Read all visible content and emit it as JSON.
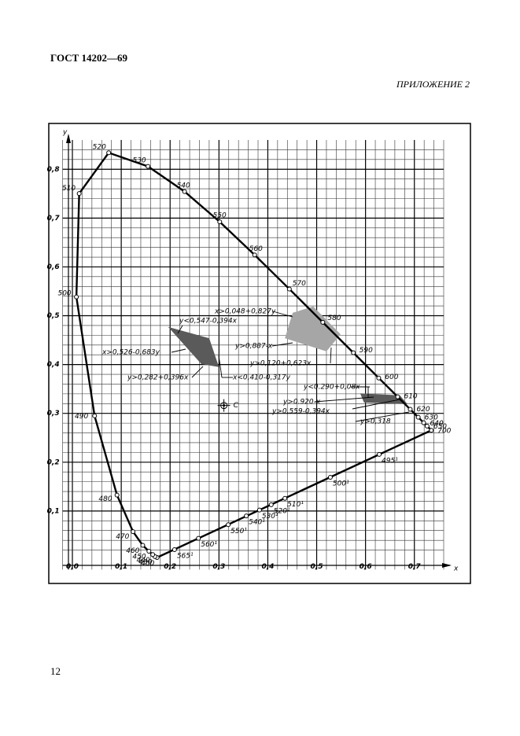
{
  "header": {
    "title": "ГОСТ 14202—69",
    "appendix": "ПРИЛОЖЕНИЕ 2"
  },
  "page_number": "12",
  "chart_data": {
    "type": "line",
    "xlabel": "x",
    "ylabel": "y",
    "xlim": [
      -0.02,
      0.76
    ],
    "ylim": [
      -0.02,
      0.86
    ],
    "xticks": [
      {
        "value": 0,
        "label": "0,0"
      },
      {
        "value": 0.1,
        "label": "0,1"
      },
      {
        "value": 0.2,
        "label": "0,2"
      },
      {
        "value": 0.3,
        "label": "0,3"
      },
      {
        "value": 0.4,
        "label": "0,4"
      },
      {
        "value": 0.5,
        "label": "0,5"
      },
      {
        "value": 0.6,
        "label": "0,6"
      },
      {
        "value": 0.7,
        "label": "0,7"
      }
    ],
    "yticks": [
      {
        "value": 0.1,
        "label": "0,1"
      },
      {
        "value": 0.2,
        "label": "0,2"
      },
      {
        "value": 0.3,
        "label": "0,3"
      },
      {
        "value": 0.4,
        "label": "0,4"
      },
      {
        "value": 0.5,
        "label": "0,5"
      },
      {
        "value": 0.6,
        "label": "0,6"
      },
      {
        "value": 0.7,
        "label": "0,7"
      },
      {
        "value": 0.8,
        "label": "0,8"
      }
    ],
    "grid": true,
    "color": "#000000",
    "locus": {
      "point_labels": [
        "400",
        "430",
        "440",
        "450",
        "460",
        "470",
        "480",
        "490",
        "500",
        "510",
        "520",
        "530",
        "540",
        "550",
        "560",
        "570",
        "580",
        "590",
        "600",
        "610",
        "620",
        "630",
        "640",
        "650",
        "700"
      ],
      "x": [
        0.1733,
        0.1689,
        0.1644,
        0.1566,
        0.144,
        0.1241,
        0.0913,
        0.0454,
        0.0082,
        0.0139,
        0.0743,
        0.1547,
        0.2296,
        0.3016,
        0.3731,
        0.4441,
        0.5125,
        0.5752,
        0.627,
        0.6658,
        0.6915,
        0.7079,
        0.719,
        0.726,
        0.7347
      ],
      "values": [
        0.0048,
        0.0069,
        0.0109,
        0.0177,
        0.0297,
        0.0578,
        0.1327,
        0.295,
        0.5384,
        0.7502,
        0.8338,
        0.8059,
        0.7543,
        0.6923,
        0.6245,
        0.5547,
        0.4866,
        0.4242,
        0.3725,
        0.334,
        0.3083,
        0.292,
        0.2809,
        0.274,
        0.2653
      ]
    },
    "purple_points": {
      "point_labels": [
        "565¹",
        "560¹",
        "550¹",
        "540¹",
        "530¹",
        "520¹",
        "510¹",
        "500¹",
        "495¹"
      ],
      "x": [
        0.209,
        0.258,
        0.319,
        0.356,
        0.383,
        0.407,
        0.435,
        0.528,
        0.628
      ],
      "values": [
        0.021,
        0.044,
        0.072,
        0.09,
        0.102,
        0.113,
        0.126,
        0.169,
        0.216
      ]
    },
    "illuminant": {
      "label": "C",
      "x": 0.3101,
      "y": 0.3162
    },
    "regions": [
      {
        "color": "#5a5a5a",
        "points": [
          [
            0.196,
            0.477
          ],
          [
            0.28,
            0.454
          ],
          [
            0.3,
            0.395
          ],
          [
            0.264,
            0.401
          ]
        ]
      },
      {
        "color": "#a6a6a6",
        "points": [
          [
            0.451,
            0.506
          ],
          [
            0.493,
            0.519
          ],
          [
            0.549,
            0.462
          ],
          [
            0.52,
            0.427
          ],
          [
            0.435,
            0.454
          ]
        ]
      },
      {
        "color": "#5a5a5a",
        "points": [
          [
            0.589,
            0.341
          ],
          [
            0.67,
            0.337
          ],
          [
            0.686,
            0.319
          ],
          [
            0.597,
            0.322
          ]
        ]
      }
    ],
    "annotations": [
      "x>0,048+0,827y",
      "y<0,547-0,394x",
      "x>0,526-0,683y",
      "y>0,282+0,396x",
      "x<0,410-0,317y",
      "y>0,887-x",
      "y>0,120+0,623x",
      "y<0.290+0,08x",
      "y>0.920-x",
      "y>0,559-0,394x",
      "y>0,318"
    ]
  }
}
